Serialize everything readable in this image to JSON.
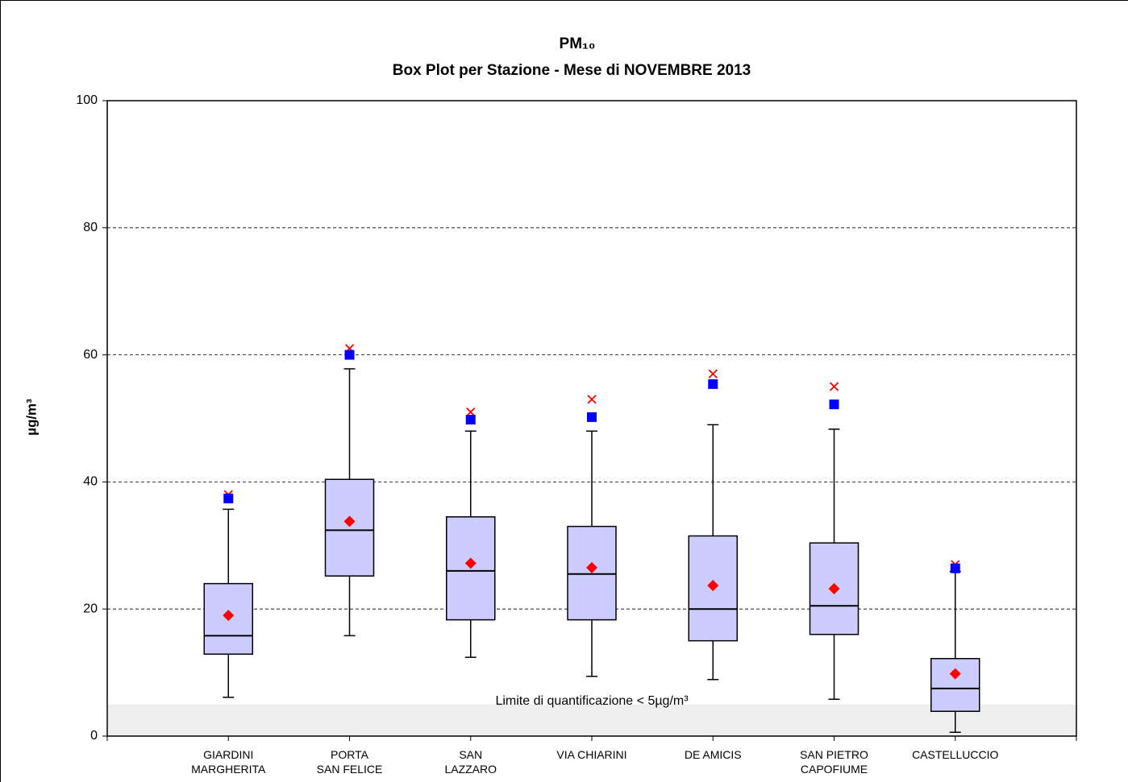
{
  "chart_data": {
    "type": "box",
    "title": "PM₁₀",
    "subtitle": "Box Plot per Stazione - Mese di NOVEMBRE 2013",
    "y_label": "µg/m³",
    "categories": [
      "GIARDINI\nMARGHERITA",
      "PORTA\nSAN FELICE",
      "SAN\nLAZZARO",
      "VIA CHIARINI",
      "DE AMICIS",
      "SAN PIETRO\nCAPOFIUME",
      "CASTELLUCCIO"
    ],
    "box_color": "#ccccff",
    "boxes": {
      "low": [
        6.1,
        15.8,
        12.4,
        9.4,
        8.9,
        5.8,
        0.6
      ],
      "q1": [
        12.9,
        25.2,
        18.3,
        18.3,
        15,
        16,
        3.9
      ],
      "median": [
        15.8,
        32.4,
        26,
        25.5,
        20,
        20.5,
        7.5
      ],
      "q3": [
        24,
        40.4,
        34.5,
        33,
        31.5,
        30.4,
        12.2
      ],
      "high": [
        35.7,
        57.8,
        48,
        48,
        49,
        48.3,
        25.9
      ]
    },
    "markers": [
      {
        "shape": "diamond",
        "color": "#ff0000",
        "values": [
          19,
          33.8,
          27.2,
          26.5,
          23.7,
          23.2,
          9.8
        ]
      },
      {
        "shape": "square",
        "color": "#0000ff",
        "values": [
          37.4,
          60,
          49.8,
          50.2,
          55.4,
          52.2,
          26.4
        ]
      },
      {
        "shape": "cross",
        "color": "#ff0000",
        "values": [
          38,
          61,
          51,
          53,
          57,
          55,
          27
        ]
      }
    ],
    "shade": {
      "from": 0,
      "to": 5,
      "color": "#eeeeee",
      "label": "Limite di quantificazione < 5µg/m³"
    },
    "ylim": [
      0,
      100
    ],
    "yticks": [
      0,
      20,
      40,
      60,
      80,
      100
    ],
    "grid": true
  }
}
